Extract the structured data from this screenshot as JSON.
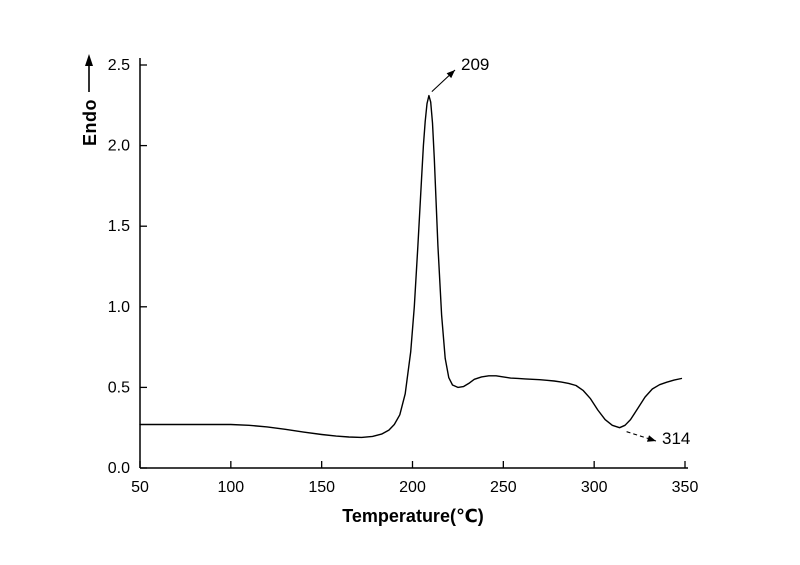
{
  "figure": {
    "background": "#ffffff",
    "line_color": "#000000"
  },
  "chart_data": {
    "type": "line",
    "title": "",
    "xlabel": "Temperature(℃)",
    "ylabel": "Endo",
    "xlim": [
      50,
      350
    ],
    "ylim": [
      0,
      2.5
    ],
    "x_ticks": [
      50,
      100,
      150,
      200,
      250,
      300,
      350
    ],
    "y_ticks": [
      0.0,
      0.5,
      1.0,
      1.5,
      2.0,
      2.5
    ],
    "grid": false,
    "legend": false,
    "line_color": "#000000",
    "series": [
      {
        "name": "DSC curve",
        "points": [
          [
            50,
            0.27
          ],
          [
            60,
            0.27
          ],
          [
            70,
            0.27
          ],
          [
            80,
            0.27
          ],
          [
            90,
            0.27
          ],
          [
            100,
            0.27
          ],
          [
            110,
            0.265
          ],
          [
            120,
            0.255
          ],
          [
            130,
            0.24
          ],
          [
            140,
            0.223
          ],
          [
            150,
            0.208
          ],
          [
            158,
            0.198
          ],
          [
            165,
            0.192
          ],
          [
            172,
            0.19
          ],
          [
            178,
            0.196
          ],
          [
            183,
            0.21
          ],
          [
            187,
            0.235
          ],
          [
            190,
            0.27
          ],
          [
            193,
            0.33
          ],
          [
            196,
            0.46
          ],
          [
            199,
            0.72
          ],
          [
            201,
            1.0
          ],
          [
            203,
            1.38
          ],
          [
            205,
            1.8
          ],
          [
            206,
            2.0
          ],
          [
            207,
            2.15
          ],
          [
            208,
            2.26
          ],
          [
            209,
            2.31
          ],
          [
            210,
            2.27
          ],
          [
            211,
            2.14
          ],
          [
            212,
            1.92
          ],
          [
            213,
            1.65
          ],
          [
            214,
            1.38
          ],
          [
            216,
            0.95
          ],
          [
            218,
            0.68
          ],
          [
            220,
            0.56
          ],
          [
            222,
            0.515
          ],
          [
            225,
            0.5
          ],
          [
            228,
            0.505
          ],
          [
            231,
            0.525
          ],
          [
            234,
            0.55
          ],
          [
            238,
            0.565
          ],
          [
            242,
            0.572
          ],
          [
            246,
            0.572
          ],
          [
            250,
            0.565
          ],
          [
            254,
            0.558
          ],
          [
            258,
            0.556
          ],
          [
            262,
            0.553
          ],
          [
            266,
            0.55
          ],
          [
            270,
            0.548
          ],
          [
            274,
            0.544
          ],
          [
            278,
            0.54
          ],
          [
            282,
            0.533
          ],
          [
            286,
            0.525
          ],
          [
            290,
            0.512
          ],
          [
            294,
            0.48
          ],
          [
            298,
            0.43
          ],
          [
            302,
            0.36
          ],
          [
            306,
            0.3
          ],
          [
            310,
            0.265
          ],
          [
            314,
            0.25
          ],
          [
            317,
            0.265
          ],
          [
            320,
            0.3
          ],
          [
            324,
            0.37
          ],
          [
            328,
            0.44
          ],
          [
            332,
            0.49
          ],
          [
            336,
            0.517
          ],
          [
            340,
            0.532
          ],
          [
            344,
            0.545
          ],
          [
            348,
            0.555
          ]
        ]
      }
    ],
    "annotations": [
      {
        "label": "209",
        "x": 209,
        "y": 2.31
      },
      {
        "label": "314",
        "x": 314,
        "y": 0.25
      }
    ]
  }
}
